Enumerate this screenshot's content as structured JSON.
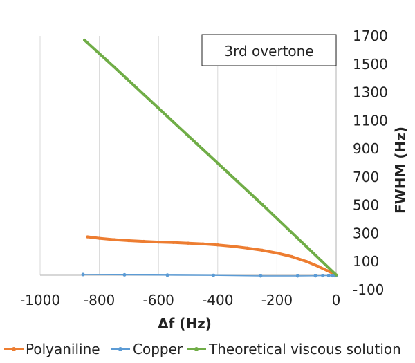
{
  "chart_data": {
    "type": "line",
    "annotation": "3rd overtone",
    "xlabel": "Δf (Hz)",
    "ylabel": "FWHM (Hz)",
    "xlim": [
      -1000,
      0
    ],
    "ylim": [
      -100,
      1700
    ],
    "xticks": [
      -1000,
      -800,
      -600,
      -400,
      -200,
      0
    ],
    "yticks": [
      -100,
      100,
      300,
      500,
      700,
      900,
      1100,
      1300,
      1500,
      1700
    ],
    "grid": "vertical",
    "legend_position": "bottom",
    "series": [
      {
        "name": "Polyaniline",
        "color": "#ED7D31",
        "x": [
          -840,
          -800,
          -750,
          -700,
          -650,
          -600,
          -550,
          -500,
          -450,
          -400,
          -350,
          -300,
          -250,
          -200,
          -150,
          -100,
          -60,
          -30,
          0
        ],
        "y": [
          275,
          265,
          255,
          248,
          243,
          238,
          235,
          230,
          225,
          218,
          208,
          195,
          180,
          160,
          135,
          100,
          65,
          35,
          5
        ]
      },
      {
        "name": "Copper",
        "color": "#5B9BD5",
        "x": [
          -855,
          -715,
          -570,
          -415,
          -255,
          -130,
          -70,
          -45,
          -25,
          -12,
          -5,
          0
        ],
        "y": [
          8,
          6,
          4,
          2,
          -2,
          -2,
          -1,
          0,
          0,
          0,
          0,
          0
        ]
      },
      {
        "name": "Theoretical viscous solution",
        "color": "#70AD47",
        "x": [
          -850,
          -750,
          -650,
          -550,
          -450,
          -350,
          -250,
          -150,
          -50,
          0
        ],
        "y": [
          1670,
          1480,
          1285,
          1090,
          895,
          700,
          505,
          305,
          105,
          5
        ]
      }
    ]
  }
}
